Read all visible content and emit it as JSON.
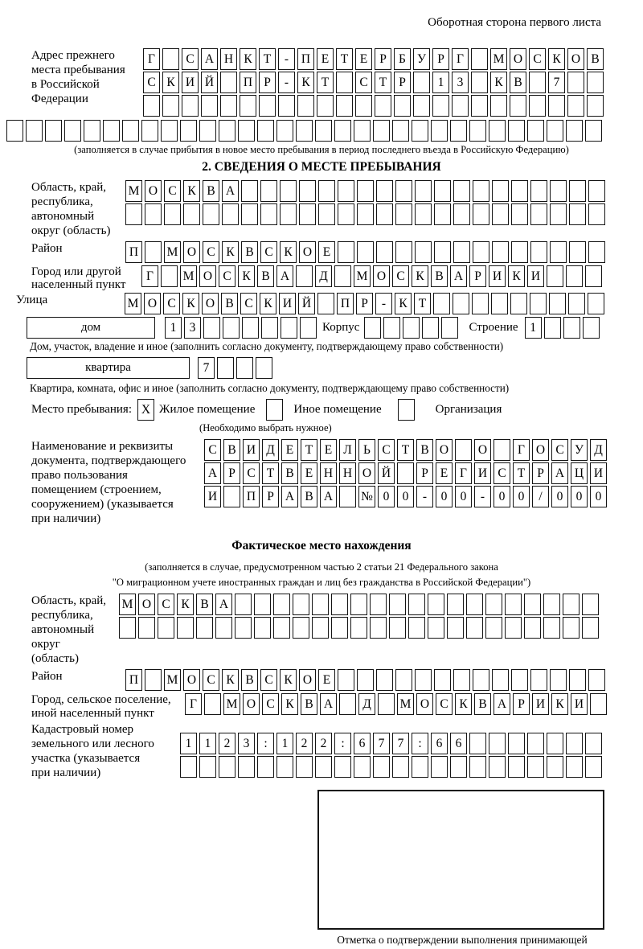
{
  "page": {
    "back_note": "Оборотная сторона первого листа"
  },
  "prev_address": {
    "label_lines": "Адрес прежнего\nместа пребывания\nв Российской\nФедерации",
    "rows": [
      {
        "chars": "Г САНКТ-ПЕТЕРБУРГ МОСКОВ",
        "count": 24
      },
      {
        "chars": "СКИЙ ПР-КТ СТР 13 КВ 7",
        "count": 24
      },
      {
        "chars": "",
        "count": 24
      },
      {
        "chars": "",
        "count": 31
      }
    ],
    "note": "(заполняется в случае прибытия в новое место пребывания в период последнего въезда в Российскую Федерацию)"
  },
  "section2": {
    "title": "2. СВЕДЕНИЯ О МЕСТЕ ПРЕБЫВАНИЯ",
    "region": {
      "label_lines": "Область, край,\nреспублика,\nавтономный\nокруг (область)",
      "rows": [
        {
          "chars": "МОСКВА",
          "count": 25
        },
        {
          "chars": "",
          "count": 25
        }
      ]
    },
    "district": {
      "label": "Район",
      "row": {
        "chars": "П МОСКВСКОЕ",
        "count": 25
      }
    },
    "city": {
      "label_lines": "Город или другой\nнаселенный пункт",
      "row": {
        "chars": "Г МОСКВА Д МОСКВАРИКИ",
        "count": 24
      }
    },
    "street": {
      "label": "Улица",
      "row": {
        "chars": "МОСКОВСКИЙ ПР-КТ",
        "count": 25
      }
    },
    "house": {
      "field_label": "дом",
      "row": {
        "chars": "13",
        "count": 8
      },
      "korpus_label": "Корпус",
      "korpus_row": {
        "chars": "",
        "count": 5
      },
      "stroenie_label": "Строение",
      "stroenie_row": {
        "chars": "1",
        "count": 4
      },
      "note": "Дом, участок, владение и иное (заполнить согласно документу, подтверждающему право собственности)"
    },
    "apartment": {
      "field_label": "квартира",
      "row": {
        "chars": "7",
        "count": 4
      },
      "note": "Квартира, комната, офис и иное (заполнить согласно документу, подтверждающему право собственности)"
    },
    "stay_type": {
      "label": "Место пребывания:",
      "options": [
        {
          "label": "Жилое помещение",
          "row": {
            "chars": "X",
            "count": 1
          }
        },
        {
          "label": "Иное помещение",
          "row": {
            "chars": "",
            "count": 1
          }
        },
        {
          "label": "Организация",
          "row": {
            "chars": "",
            "count": 1
          }
        }
      ],
      "note": "(Необходимо выбрать нужное)"
    },
    "doc": {
      "label_lines": "Наименование и реквизиты\nдокумента, подтверждающего\nправо пользования\nпомещением (строением,\nсооружением) (указывается\nпри наличии)",
      "rows": [
        {
          "chars": "СВИДЕТЕЛЬСТВО О ГОСУД",
          "count": 21
        },
        {
          "chars": "АРСТВЕННОЙ РЕГИСТРАЦИ",
          "count": 21
        },
        {
          "chars": "И ПРАВА №00-00-00/000",
          "count": 21
        }
      ]
    }
  },
  "actual_location": {
    "title": "Фактическое место нахождения",
    "note_line1": "(заполняется в случае, предусмотренном частью 2 статьи 21 Федерального закона",
    "note_line2": "\"О миграционном учете иностранных граждан и лиц без гражданства в Российской Федерации\")",
    "region": {
      "label_lines": "Область, край,\nреспублика,\nавтономный округ\n(область)",
      "rows": [
        {
          "chars": "МОСКВА",
          "count": 25
        },
        {
          "chars": "",
          "count": 25
        }
      ]
    },
    "district": {
      "label": "Район",
      "row": {
        "chars": "П МОСКВСКОЕ",
        "count": 25
      }
    },
    "city": {
      "label_lines": "Город, сельское поселение,\nиной населенный пункт",
      "row": {
        "chars": "Г МОСКВА Д МОСКВАРИКИ",
        "count": 22
      }
    },
    "cadastre": {
      "label_lines": "Кадастровый номер\nземельного или лесного\nучастка (указывается\nпри наличии)",
      "rows": [
        {
          "chars": "1123:122:677:66",
          "count": 22
        },
        {
          "chars": "",
          "count": 22
        }
      ]
    }
  },
  "confirmation": {
    "note_lines": "Отметка о подтверждении выполнения принимающей\nстороной и иностранным гражданином или лицом без\nгражданства действий, необходимых для его постановки\nна учет по месту пребывания"
  }
}
